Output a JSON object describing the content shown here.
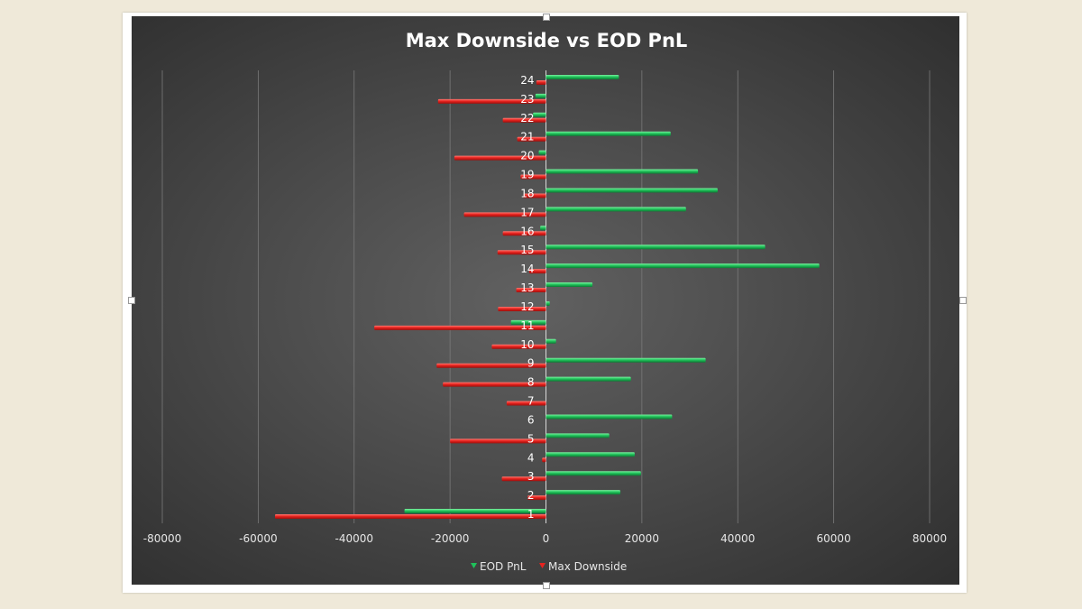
{
  "chart_data": {
    "type": "bar",
    "orientation": "horizontal",
    "title": "Max Downside vs EOD PnL",
    "xlabel": "",
    "ylabel": "",
    "xlim": [
      -80000,
      80000
    ],
    "x_ticks": [
      "-80000",
      "-60000",
      "-40000",
      "-20000",
      "0",
      "20000",
      "40000",
      "60000",
      "80000"
    ],
    "grid": "vertical",
    "legend_position": "bottom",
    "categories": [
      "1",
      "2",
      "3",
      "4",
      "5",
      "6",
      "7",
      "8",
      "9",
      "10",
      "11",
      "12",
      "13",
      "14",
      "15",
      "16",
      "17",
      "18",
      "19",
      "20",
      "21",
      "22",
      "23",
      "24"
    ],
    "series": [
      {
        "name": "EOD PnL",
        "color": "#1fc25a",
        "values": [
          -29500,
          15500,
          19800,
          18500,
          13200,
          26300,
          0,
          17700,
          33300,
          2100,
          -7300,
          800,
          9700,
          57000,
          45700,
          -1200,
          29200,
          35800,
          31700,
          -1500,
          26000,
          -2700,
          -2200,
          15200
        ]
      },
      {
        "name": "Max Downside",
        "color": "#e8231f",
        "values": [
          -56500,
          -3800,
          -9200,
          -800,
          -20000,
          0,
          -8200,
          -21500,
          -22800,
          -11300,
          -35800,
          -10000,
          -6200,
          -3500,
          -10100,
          -9000,
          -17100,
          -4700,
          -5300,
          -19100,
          -6000,
          -9000,
          -22500,
          -2000
        ]
      }
    ]
  }
}
